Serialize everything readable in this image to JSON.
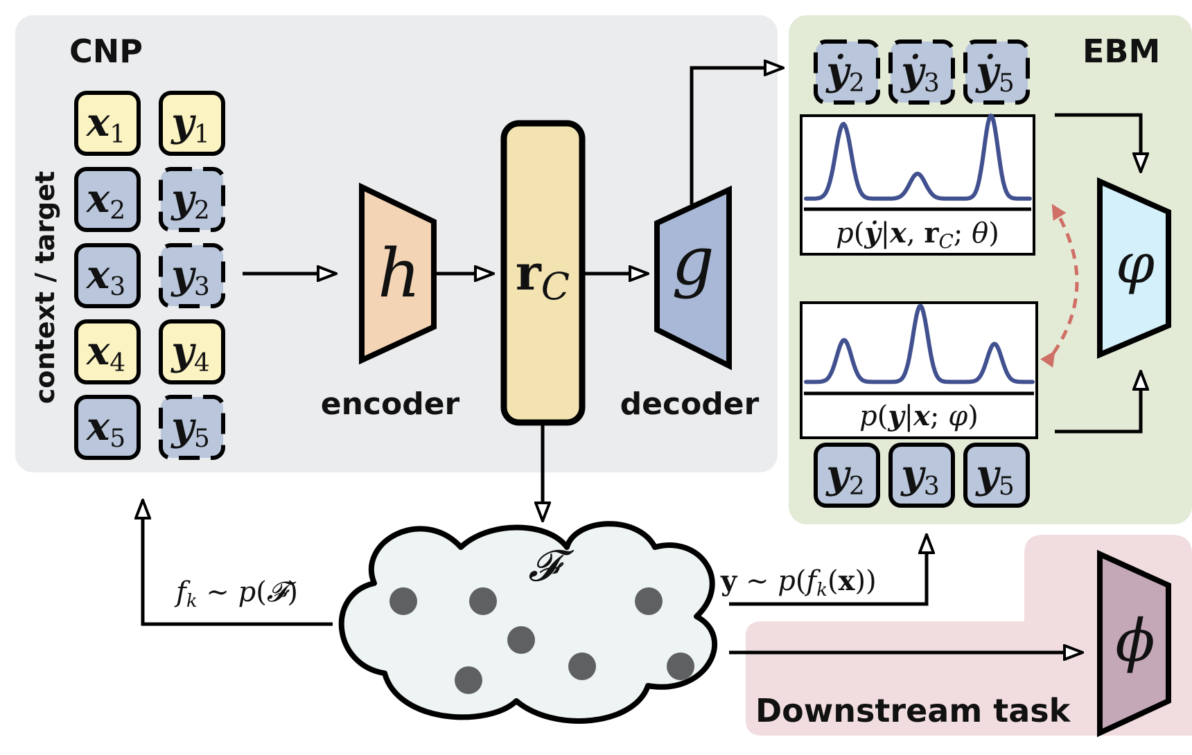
{
  "panels": {
    "cnp_title": "CNP",
    "ebm_title": "EBM",
    "downstream_title": "Downstream task",
    "side_label": "context / target"
  },
  "inputs": {
    "x": [
      {
        "base": "x",
        "sub": "1",
        "role": "context"
      },
      {
        "base": "x",
        "sub": "2",
        "role": "target"
      },
      {
        "base": "x",
        "sub": "3",
        "role": "target"
      },
      {
        "base": "x",
        "sub": "4",
        "role": "context"
      },
      {
        "base": "x",
        "sub": "5",
        "role": "target"
      }
    ],
    "y": [
      {
        "base": "y",
        "sub": "1",
        "role": "context"
      },
      {
        "base": "y",
        "sub": "2",
        "role": "target"
      },
      {
        "base": "y",
        "sub": "3",
        "role": "target"
      },
      {
        "base": "y",
        "sub": "4",
        "role": "context"
      },
      {
        "base": "y",
        "sub": "5",
        "role": "target"
      }
    ]
  },
  "encoder": {
    "symbol": "h",
    "caption": "encoder"
  },
  "representation": {
    "base": "r",
    "sub": "C"
  },
  "decoder": {
    "symbol": "g",
    "caption": "decoder"
  },
  "samples": [
    {
      "base": "ẏ",
      "sub": "2"
    },
    {
      "base": "ẏ",
      "sub": "3"
    },
    {
      "base": "ẏ",
      "sub": "5"
    }
  ],
  "targets": [
    {
      "base": "y",
      "sub": "2"
    },
    {
      "base": "y",
      "sub": "3"
    },
    {
      "base": "y",
      "sub": "5"
    }
  ],
  "plot_top": {
    "label": "p(ẏ|x, r_C; θ)",
    "peaks": [
      0.9,
      0.3,
      1.0
    ]
  },
  "plot_bottom": {
    "label": "p(y|x; φ)",
    "peaks": [
      0.55,
      1.0,
      0.5
    ]
  },
  "ebm_net": {
    "symbol": "φ"
  },
  "downstream_net": {
    "symbol": "ϕ"
  },
  "function_space": {
    "symbol": "𝓕"
  },
  "edges": {
    "sample_functions": "f_k ∼ p(𝓕)",
    "sample_outputs": "y ∼ p(f_k(x))"
  },
  "colors": {
    "context_fill": "#fbf3c2",
    "target_fill": "#b9c6db",
    "cnp_bg": "#ebecee",
    "ebm_bg": "#e3ebd7",
    "downstream_bg": "#f1dde0",
    "encoder_fill": "#f3d4b5",
    "rc_fill": "#f2e3b1",
    "decoder_fill": "#a8b8d6",
    "ebm_fill": "#d4f1fb",
    "downstream_fill": "#c4a8b8",
    "curve": "#41508f",
    "dashed": "#cf6f65",
    "cloud_fill": "#eef3f4",
    "dot": "#5e6062"
  }
}
